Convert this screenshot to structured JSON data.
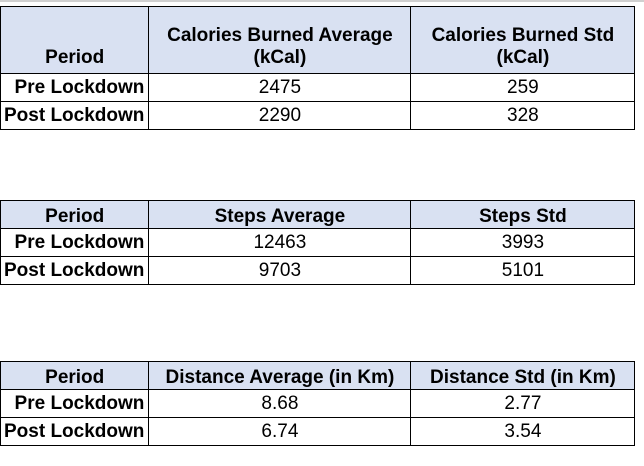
{
  "tables": [
    {
      "headers": [
        "Period",
        "Calories Burned Average (kCal)",
        "Calories Burned Std (kCal)"
      ],
      "rows": [
        {
          "period": "Pre Lockdown",
          "avg": "2475",
          "std": "259"
        },
        {
          "period": "Post Lockdown",
          "avg": "2290",
          "std": "328"
        }
      ]
    },
    {
      "headers": [
        "Period",
        "Steps Average",
        "Steps Std"
      ],
      "rows": [
        {
          "period": "Pre Lockdown",
          "avg": "12463",
          "std": "3993"
        },
        {
          "period": "Post Lockdown",
          "avg": "9703",
          "std": "5101"
        }
      ]
    },
    {
      "headers": [
        "Period",
        "Distance Average (in Km)",
        "Distance Std (in Km)"
      ],
      "rows": [
        {
          "period": "Pre Lockdown",
          "avg": "8.68",
          "std": "2.77"
        },
        {
          "period": "Post Lockdown",
          "avg": "6.74",
          "std": "3.54"
        }
      ]
    }
  ],
  "colors": {
    "header_fill": "#d9e1f2",
    "border": "#000000",
    "cell_fill": "#ffffff"
  }
}
